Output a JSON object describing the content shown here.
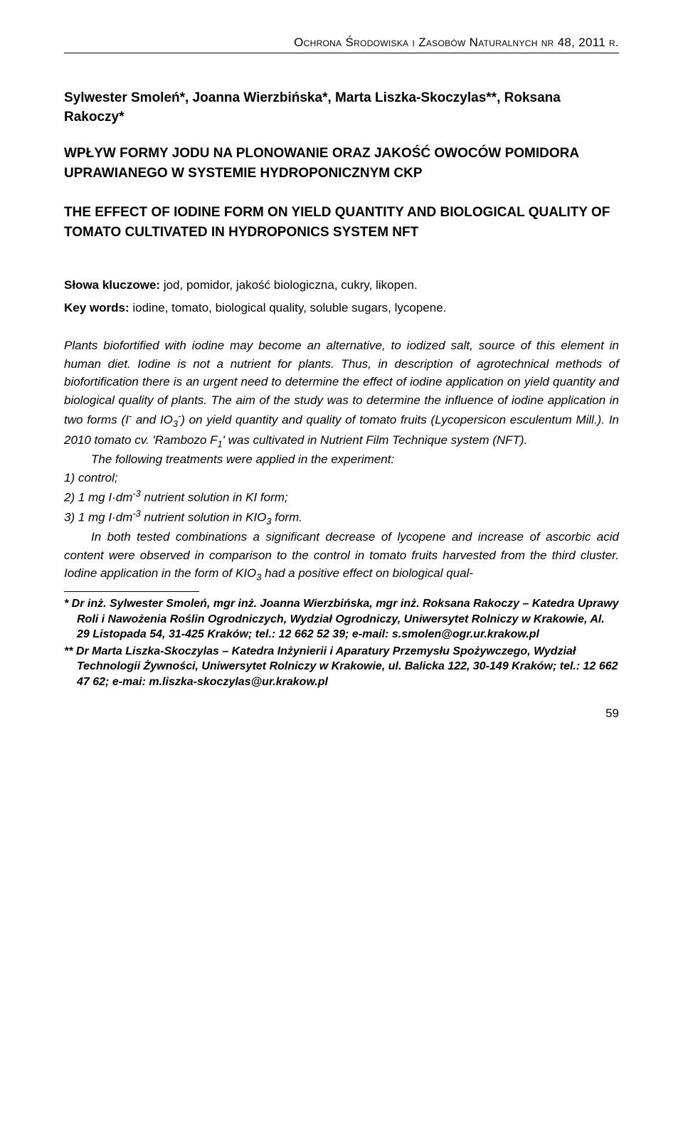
{
  "header": "Ochrona Środowiska i Zasobów Naturalnych  nr 48, 2011 r.",
  "authors": "Sylwester Smoleń*, Joanna Wierzbińska*, Marta Liszka-Skoczylas**, Roksana Rakoczy*",
  "titlePl": "WPŁYW FORMY JODU NA PLONOWANIE ORAZ JAKOŚĆ OWOCÓW POMIDORA UPRAWIANEGO W SYSTEMIE HYDROPONICZNYM CKP",
  "titleEn": "THE EFFECT OF IODINE FORM ON YIELD QUANTITY AND BIOLOGICAL QUALITY OF TOMATO CULTIVATED IN HYDROPONICS SYSTEM NFT",
  "kwPlLabel": "Słowa kluczowe:",
  "kwPl": " jod, pomidor, jakość biologiczna, cukry, likopen.",
  "kwEnLabel": "Key words:",
  "kwEn": " iodine, tomato, biological quality, soluble sugars, lycopene.",
  "abs1a": "Plants biofortified with iodine may become an alternative, to iodized salt, source of this element in human diet. Iodine is not a nutrient for plants. Thus, in description of agrotechnical methods of biofortification there is an urgent need to determine the effect of iodine application on yield quantity and biological quality of plants. The aim of the study was to determine the influence of iodine application in two forms (I",
  "abs1b": " and IO",
  "abs1c": ") on yield quantity and quality of tomato fruits (Lycopersicon esculentum Mill.). In 2010 tomato cv. 'Rambozo F",
  "abs1d": "' was cultivated in Nutrient Film Technique system (NFT).",
  "abs2": "The following treatments were applied in the experiment:",
  "tr1": "1)   control;",
  "tr2a": "2)   1 mg I·dm",
  "tr2b": " nutrient solution in KI form;",
  "tr3a": "3)   1 mg I·dm",
  "tr3b": " nutrient solution in KIO",
  "tr3c": " form.",
  "abs3a": "In both tested combinations a significant decrease of lycopene and increase of ascorbic acid content were observed in comparison to the control in tomato fruits harvested from the third cluster. Iodine application in the form of KIO",
  "abs3b": " had a positive effect on biological qual-",
  "fn1": "*  Dr inż. Sylwester Smoleń, mgr inż. Joanna Wierzbińska, mgr inż. Roksana Rakoczy – Katedra Uprawy Roli i Nawożenia Roślin Ogrodniczych, Wydział Ogrodniczy, Uniwersytet Rolniczy w Krakowie, Al. 29 Listopada 54, 31-425 Kraków; tel.: 12 662 52 39; e-mail: s.smolen@ogr.ur.krakow.pl",
  "fn2": "** Dr Marta Liszka-Skoczylas – Katedra Inżynierii i Aparatury Przemysłu Spożywczego, Wydział Technologii Żywności, Uniwersytet Rolniczy w Krakowie, ul. Balicka 122, 30-149 Kraków; tel.: 12 662 47 62; e-mai: m.liszka-skoczylas@ur.krakow.pl",
  "pageNum": "59",
  "minus": "-",
  "sub3": "3",
  "sub1": "1",
  "supNeg3": "-3"
}
